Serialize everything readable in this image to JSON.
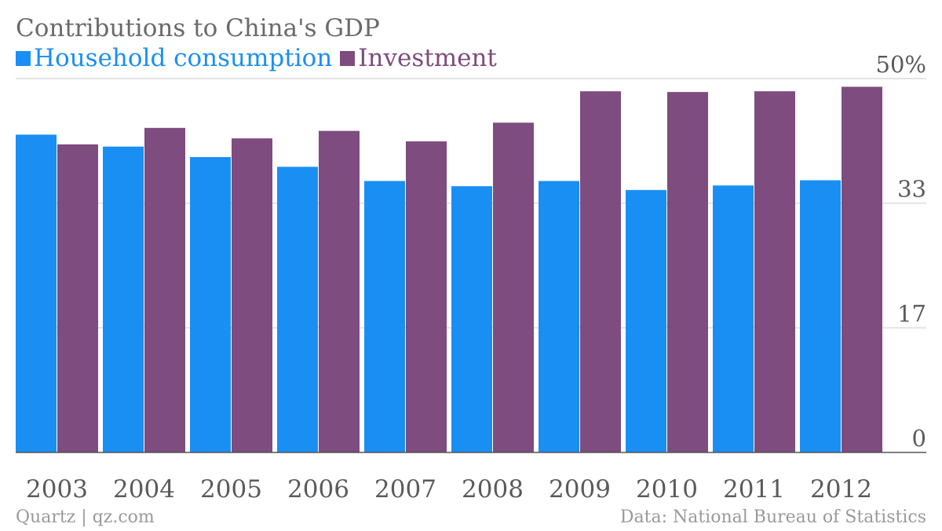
{
  "chart_data": {
    "type": "bar",
    "title": "Contributions to China's GDP",
    "categories": [
      "2003",
      "2004",
      "2005",
      "2006",
      "2007",
      "2008",
      "2009",
      "2010",
      "2011",
      "2012"
    ],
    "series": [
      {
        "name": "Household consumption",
        "color": "#1a8ff3",
        "values": [
          42.5,
          40.9,
          39.5,
          38.2,
          36.3,
          35.6,
          36.3,
          35.1,
          35.7,
          36.4
        ]
      },
      {
        "name": "Investment",
        "color": "#7e4c7e",
        "values": [
          41.2,
          43.4,
          42.0,
          43.0,
          41.6,
          44.1,
          48.3,
          48.2,
          48.3,
          48.9
        ]
      }
    ],
    "y_ticks": [
      "50%",
      "33",
      "17",
      "0"
    ],
    "ylim": [
      0,
      50
    ],
    "grid": true,
    "y_axis_side": "right",
    "legend_position": "top-left"
  },
  "footer": {
    "source_left": "Quartz | qz.com",
    "source_right": "Data: National Bureau of Statistics"
  }
}
